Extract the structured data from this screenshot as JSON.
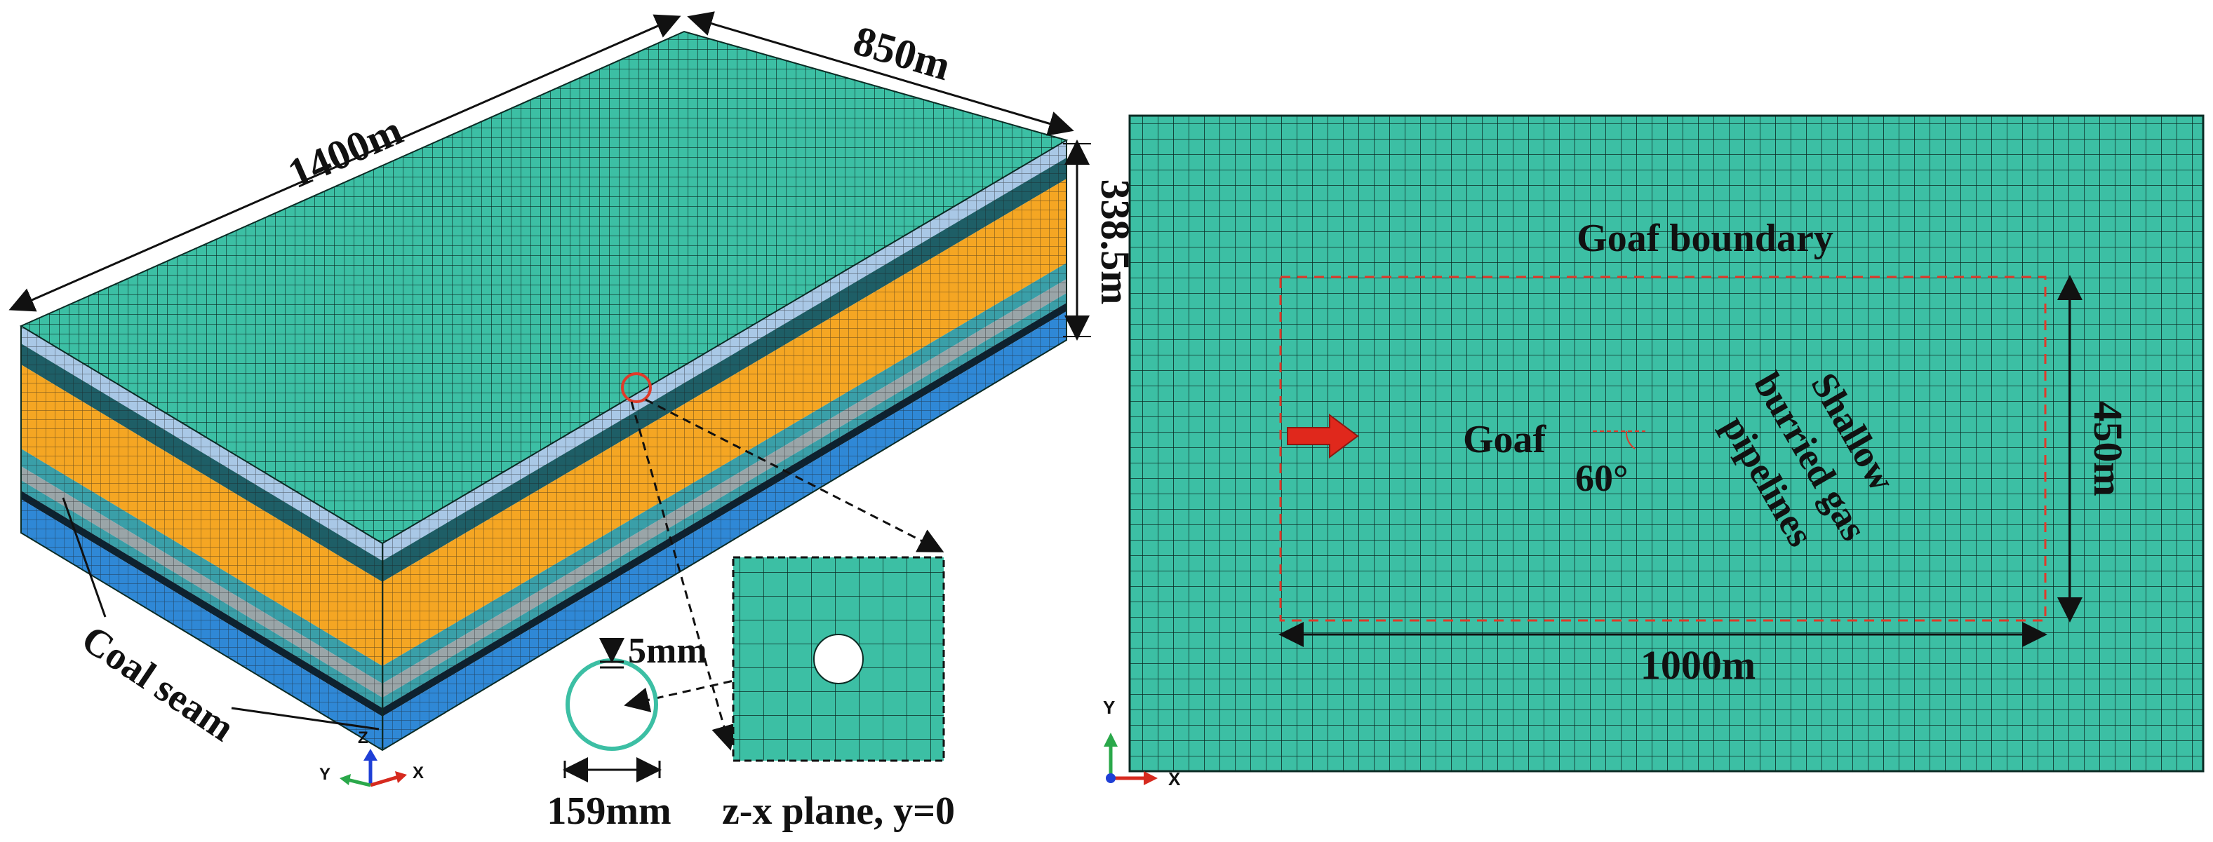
{
  "left_panel": {
    "dim_length": "1400m",
    "dim_width": "850m",
    "dim_height": "338.5m",
    "coal_seam_label": "Coal seam",
    "pipe_thickness_label": "5mm",
    "pipe_diameter_label": "159mm",
    "plane_label": "z-x plane, y=0",
    "axis_x": "X",
    "axis_y": "Y",
    "axis_z": "Z"
  },
  "right_panel": {
    "goaf_boundary_label": "Goaf boundary",
    "goaf_label": "Goaf",
    "angle_label": "60°",
    "pipeline_label_lines": [
      "Shallow",
      "burried gas",
      "pipelines"
    ],
    "dim_height": "450m",
    "dim_width": "1000m",
    "axis_x": "X",
    "axis_y": "Y"
  },
  "colors": {
    "mesh_fill": "#3cbfa4",
    "mesh_line": "#0b2b24",
    "layer_orange": "#f5a623",
    "layer_light_blue": "#a9c8e6",
    "layer_dark_teal": "#1e5e66",
    "layer_teal": "#3a9fa8",
    "layer_gray": "#9aa5a8",
    "layer_blue": "#2f88d6",
    "goaf_line": "#e03a2a",
    "arrow": "#e0281c"
  }
}
